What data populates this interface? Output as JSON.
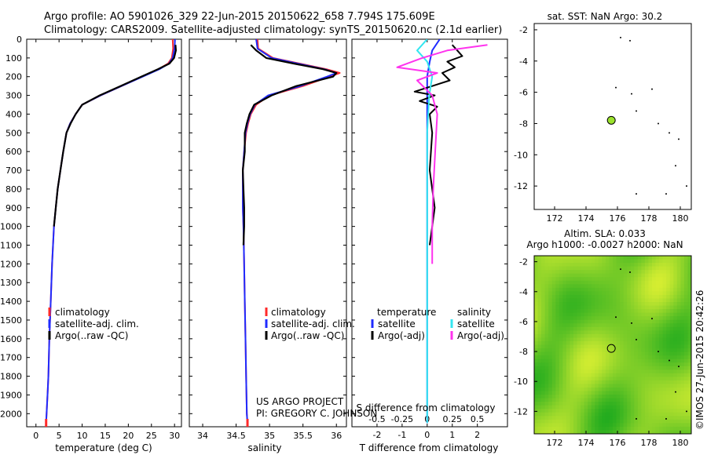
{
  "header": {
    "line1": "Argo profile: AO 5901026_329 22-Jun-2015 20150622_658 7.794S 175.609E",
    "line2": "Climatology: CARS2009. Satellite-adjusted climatology: synTS_20150620.nc (2.1d earlier)"
  },
  "credit": {
    "project": "US ARGO PROJECT",
    "pi": "PI: GREGORY C. JOHNSON"
  },
  "side_stamp": "©IMOS 27-Jun-2015 20:42:26",
  "colors": {
    "climatology": "#ff2a2a",
    "satellite": "#1f2bff",
    "argo": "#000000",
    "sal_satellite": "#33e6f0",
    "sal_argo": "#ff33ee",
    "sst_dot": "#9be22d"
  },
  "chart_data": [
    {
      "id": "temperature",
      "type": "line",
      "xlabel": "temperature (deg C)",
      "ylabel": "depth",
      "xlim": [
        -2,
        31.5
      ],
      "ylim": [
        2070,
        0
      ],
      "xticks": [
        0,
        5,
        10,
        15,
        20,
        25,
        30
      ],
      "yticks": [
        0,
        100,
        200,
        300,
        400,
        500,
        600,
        700,
        800,
        900,
        1000,
        1100,
        1200,
        1300,
        1400,
        1500,
        1600,
        1700,
        1800,
        1900,
        2000
      ],
      "legend": [
        "climatology",
        "satellite-adj. clim.",
        "Argo(..raw -QC)"
      ],
      "legend_position": "lower-center",
      "series": [
        {
          "name": "climatology",
          "x": [
            29.6,
            29.7,
            29.4,
            28.6,
            26.5,
            23.0,
            18.5,
            14.0,
            10.0,
            8.6,
            7.4,
            6.6,
            5.9,
            5.3,
            4.7,
            4.3,
            3.9,
            3.5,
            3.2,
            2.9,
            2.7,
            2.5,
            2.3,
            2.2
          ],
          "depth": [
            0,
            50,
            100,
            130,
            160,
            200,
            250,
            300,
            350,
            400,
            450,
            500,
            600,
            700,
            800,
            900,
            1000,
            1200,
            1400,
            1600,
            1800,
            1900,
            2000,
            2050
          ]
        },
        {
          "name": "satellite-adj. clim.",
          "x": [
            30.1,
            30.0,
            29.6,
            28.8,
            26.7,
            23.1,
            18.5,
            14.0,
            10.0,
            8.6,
            7.4,
            6.6,
            5.9,
            5.3,
            4.7,
            4.3,
            3.9,
            3.5,
            3.2,
            2.9,
            2.7,
            2.5,
            2.3,
            2.2
          ],
          "depth": [
            0,
            50,
            100,
            130,
            160,
            200,
            250,
            300,
            350,
            400,
            450,
            500,
            600,
            700,
            800,
            900,
            1000,
            1200,
            1400,
            1600,
            1800,
            1900,
            2000,
            2050
          ]
        },
        {
          "name": "Argo(..raw -QC)",
          "x": [
            30.2,
            30.3,
            29.9,
            28.9,
            26.4,
            22.8,
            18.3,
            13.8,
            10.0,
            8.6,
            7.5,
            6.6,
            5.9,
            5.3,
            4.7,
            4.3,
            3.9
          ],
          "depth": [
            30,
            60,
            100,
            130,
            160,
            200,
            250,
            300,
            350,
            400,
            450,
            500,
            600,
            700,
            800,
            900,
            1000
          ]
        }
      ]
    },
    {
      "id": "salinity",
      "type": "line",
      "xlabel": "salinity",
      "ylabel": "depth",
      "xlim": [
        33.8,
        36.15
      ],
      "ylim": [
        2070,
        0
      ],
      "xticks": [
        34,
        34.5,
        35,
        35.5,
        36
      ],
      "legend": [
        "climatology",
        "satellite-adj. clim.",
        "Argo(..raw -QC)"
      ],
      "legend_position": "lower-right",
      "series": [
        {
          "name": "climatology",
          "x": [
            34.82,
            34.83,
            35.05,
            35.45,
            35.85,
            36.05,
            35.9,
            35.5,
            35.0,
            34.8,
            34.72,
            34.68,
            34.65,
            34.62,
            34.6,
            34.6,
            34.6,
            34.61,
            34.62,
            34.63,
            34.64,
            34.65,
            34.66,
            34.67
          ],
          "depth": [
            0,
            50,
            100,
            130,
            160,
            180,
            200,
            250,
            300,
            350,
            400,
            450,
            500,
            600,
            700,
            800,
            900,
            1000,
            1200,
            1400,
            1600,
            1800,
            2000,
            2050
          ]
        },
        {
          "name": "satellite-adj. clim.",
          "x": [
            34.8,
            34.82,
            35.03,
            35.42,
            35.82,
            36.0,
            35.86,
            35.46,
            34.98,
            34.78,
            34.71,
            34.67,
            34.64,
            34.62,
            34.6,
            34.6,
            34.6,
            34.61,
            34.62,
            34.63,
            34.64,
            34.65,
            34.66,
            34.67
          ],
          "depth": [
            0,
            50,
            100,
            130,
            160,
            180,
            200,
            250,
            300,
            350,
            400,
            450,
            500,
            600,
            700,
            800,
            900,
            1000,
            1200,
            1400,
            1600,
            1800,
            2000,
            2050
          ]
        },
        {
          "name": "Argo(..raw -QC)",
          "x": [
            34.72,
            34.8,
            34.95,
            35.36,
            35.8,
            36.0,
            35.95,
            35.4,
            35.03,
            34.77,
            34.7,
            34.66,
            34.63,
            34.63,
            34.6,
            34.61,
            34.62,
            34.62,
            34.61
          ],
          "depth": [
            30,
            60,
            100,
            130,
            160,
            180,
            200,
            250,
            300,
            350,
            400,
            450,
            500,
            600,
            700,
            800,
            900,
            1000,
            1100
          ]
        }
      ]
    },
    {
      "id": "differences",
      "type": "line",
      "xlabel": "T difference from climatology",
      "xlabel_top": "S difference from climatology",
      "xlim_T": [
        -3,
        3.2
      ],
      "xticks_T": [
        -2,
        -1,
        0,
        1,
        2
      ],
      "xlim_S": [
        -0.75,
        0.8
      ],
      "xticks_S": [
        -0.5,
        -0.25,
        0,
        0.25,
        0.5
      ],
      "ylim": [
        2070,
        0
      ],
      "legend": [
        {
          "group": "temperature",
          "items": [
            "satellite",
            "Argo(-adj)"
          ]
        },
        {
          "group": "salinity",
          "items": [
            "satellite",
            "Argo(-adj)"
          ]
        }
      ],
      "legend_labels": {
        "temperature": "temperature",
        "salinity": "salinity",
        "t_satellite": "satellite",
        "t_argo": "Argo(-adj)",
        "s_satellite": "satellite",
        "s_argo": "Argo(-adj)"
      },
      "series": [
        {
          "name": "T satellite",
          "x": [
            0.5,
            0.2,
            0.1,
            0.0,
            0.0,
            0,
            0,
            0,
            0,
            0,
            0
          ],
          "depth": [
            0,
            60,
            120,
            200,
            300,
            500,
            800,
            1200,
            1600,
            2000,
            2050
          ]
        },
        {
          "name": "T Argo(-adj)",
          "x": [
            1.0,
            1.2,
            1.4,
            0.8,
            1.1,
            0.6,
            0.9,
            0.2,
            -0.5,
            0.3,
            -0.3,
            0.4,
            0.1,
            0.2,
            0.1,
            0.3,
            0.1
          ],
          "depth": [
            30,
            60,
            90,
            120,
            150,
            180,
            220,
            250,
            280,
            300,
            330,
            360,
            400,
            500,
            700,
            900,
            1100
          ]
        },
        {
          "name": "S satellite",
          "x": [
            0.0,
            -0.1,
            0.0,
            0.05,
            0.02,
            0,
            0,
            0,
            0,
            0,
            0
          ],
          "depth": [
            0,
            60,
            120,
            200,
            300,
            500,
            800,
            1200,
            1600,
            2000,
            2050
          ]
        },
        {
          "name": "S Argo(-adj)",
          "x": [
            0.6,
            0.2,
            -0.05,
            -0.3,
            0.1,
            -0.1,
            0.05,
            0.1,
            0.08,
            0.06,
            0.05,
            0.05
          ],
          "depth": [
            30,
            60,
            100,
            150,
            180,
            220,
            300,
            400,
            600,
            800,
            1000,
            1200
          ]
        }
      ]
    },
    {
      "id": "sst_map",
      "type": "scatter",
      "title": "sat. SST: NaN Argo: 30.2",
      "xlim": [
        170.7,
        180.7
      ],
      "ylim": [
        -13.5,
        -1.6
      ],
      "xticks": [
        172,
        174,
        176,
        178,
        180
      ],
      "yticks": [
        -2,
        -4,
        -6,
        -8,
        -10,
        -12
      ],
      "argo_position": {
        "lon": 175.609,
        "lat": -7.794
      },
      "islands": [
        [
          176.2,
          -2.5
        ],
        [
          176.8,
          -2.7
        ],
        [
          175.9,
          -5.7
        ],
        [
          176.9,
          -6.1
        ],
        [
          178.2,
          -5.8
        ],
        [
          177.2,
          -7.2
        ],
        [
          178.6,
          -8.0
        ],
        [
          179.3,
          -8.6
        ],
        [
          179.9,
          -9.0
        ],
        [
          179.7,
          -10.7
        ],
        [
          177.2,
          -12.5
        ],
        [
          179.1,
          -12.5
        ],
        [
          180.4,
          -12.0
        ]
      ]
    },
    {
      "id": "sla_map",
      "type": "heatmap",
      "title1": "Altim. SLA: 0.033",
      "title2": "Argo h1000: -0.0027 h2000: NaN",
      "xlim": [
        170.7,
        180.7
      ],
      "ylim": [
        -13.5,
        -1.6
      ],
      "xticks": [
        172,
        174,
        176,
        178,
        180
      ],
      "yticks": [
        -2,
        -4,
        -6,
        -8,
        -10,
        -12
      ],
      "argo_position": {
        "lon": 175.609,
        "lat": -7.794
      }
    }
  ]
}
